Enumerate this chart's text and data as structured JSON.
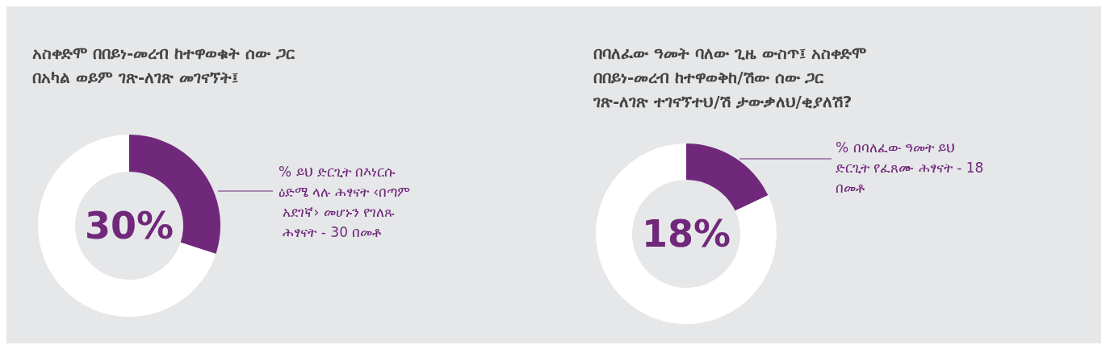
{
  "chart_data": [
    {
      "type": "donut",
      "title": "አስቀድሞ በበይነ-መረብ ከተዋወቁት ሰው ጋር በአካል ወይም ገጽ-ለገጽ መገናኘት፤",
      "categories": [
        null,
        null
      ],
      "values": [
        30,
        70
      ],
      "colors": [
        "#70297a",
        "#ffffff"
      ],
      "value_labels": [
        "30%",
        null
      ],
      "annotations": [
        "% ይህ ድርጊት በእነርሱ ዕድሜ ላሉ ሕፃናት ‹በጣም አደገኛ› መሆኑን የገለጹ ሕፃናት - 30 በመቶ"
      ]
    },
    {
      "type": "donut",
      "title": "በባለፈው ዓመት ባለው ጊዜ ውስጥ፤ አስቀድሞ በበይነ-መረብ ከተዋወቅከ/ሽው ሰው ጋር ገጽ-ለገጽ ተገናኘተህ/ሽ ታውቃለህ/ቂያለሽ?",
      "categories": [
        null,
        null
      ],
      "values": [
        18,
        82
      ],
      "colors": [
        "#70297a",
        "#ffffff"
      ],
      "value_labels": [
        "18%",
        null
      ],
      "annotations": [
        "% በባለፈው ዓመት ይህ ድርጊት የፈጸሙ ሕፃናት - 18 በመቶ"
      ]
    }
  ]
}
